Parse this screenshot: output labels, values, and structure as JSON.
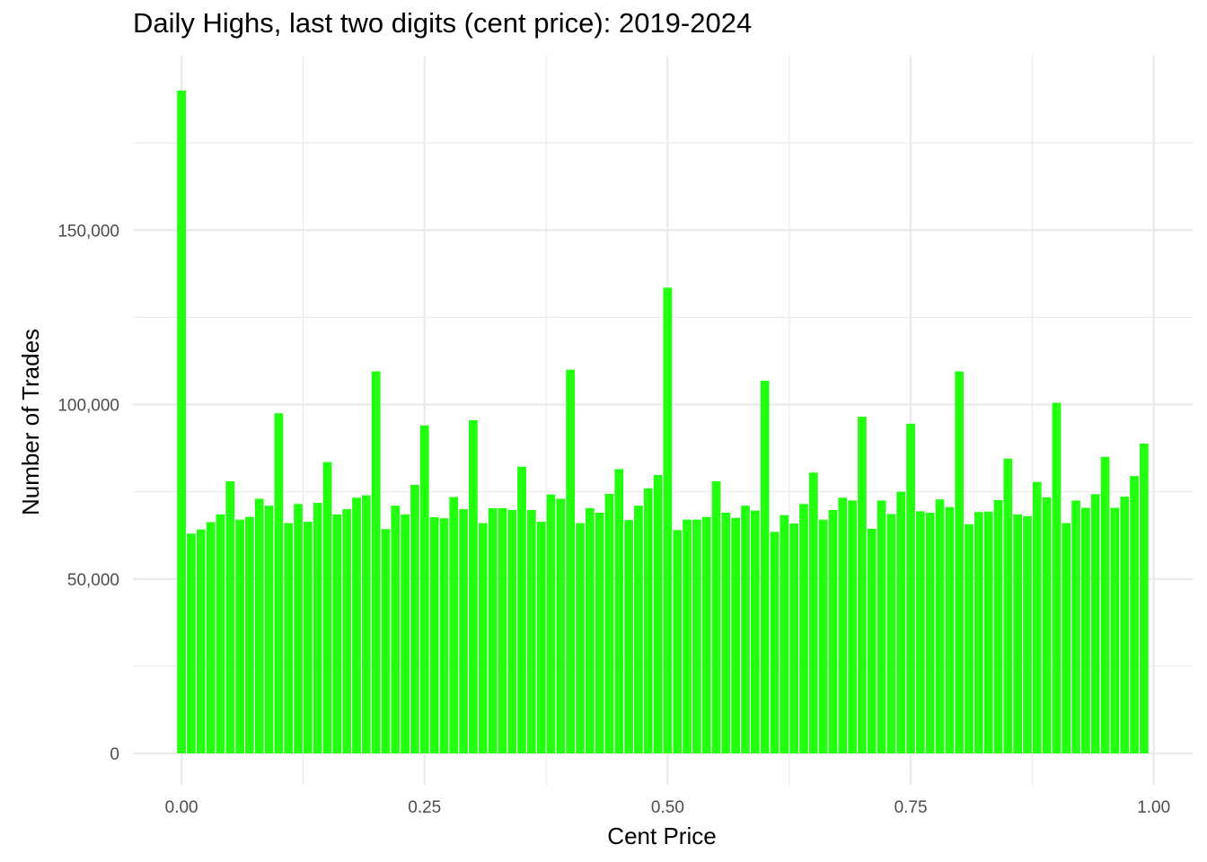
{
  "chart_data": {
    "type": "bar",
    "title": "Daily Highs, last two digits (cent price): 2019-2024",
    "xlabel": "Cent Price",
    "ylabel": "Number of Trades",
    "xlim": [
      -0.05,
      1.04
    ],
    "ylim": [
      -9000,
      200000
    ],
    "x_ticks": [
      {
        "value": 0.0,
        "label": "0.00"
      },
      {
        "value": 0.25,
        "label": "0.25"
      },
      {
        "value": 0.5,
        "label": "0.50"
      },
      {
        "value": 0.75,
        "label": "0.75"
      },
      {
        "value": 1.0,
        "label": "1.00"
      }
    ],
    "y_ticks": [
      {
        "value": 0,
        "label": "0"
      },
      {
        "value": 50000,
        "label": "50,000"
      },
      {
        "value": 100000,
        "label": "100,000"
      },
      {
        "value": 150000,
        "label": "150,000"
      }
    ],
    "grid": true,
    "bar_color": "#22ff0f",
    "x": [
      0.0,
      0.01,
      0.02,
      0.03,
      0.04,
      0.05,
      0.06,
      0.07,
      0.08,
      0.09,
      0.1,
      0.11,
      0.12,
      0.13,
      0.14,
      0.15,
      0.16,
      0.17,
      0.18,
      0.19,
      0.2,
      0.21,
      0.22,
      0.23,
      0.24,
      0.25,
      0.26,
      0.27,
      0.28,
      0.29,
      0.3,
      0.31,
      0.32,
      0.33,
      0.34,
      0.35,
      0.36,
      0.37,
      0.38,
      0.39,
      0.4,
      0.41,
      0.42,
      0.43,
      0.44,
      0.45,
      0.46,
      0.47,
      0.48,
      0.49,
      0.5,
      0.51,
      0.52,
      0.53,
      0.54,
      0.55,
      0.56,
      0.57,
      0.58,
      0.59,
      0.6,
      0.61,
      0.62,
      0.63,
      0.64,
      0.65,
      0.66,
      0.67,
      0.68,
      0.69,
      0.7,
      0.71,
      0.72,
      0.73,
      0.74,
      0.75,
      0.76,
      0.77,
      0.78,
      0.79,
      0.8,
      0.81,
      0.82,
      0.83,
      0.84,
      0.85,
      0.86,
      0.87,
      0.88,
      0.89,
      0.9,
      0.91,
      0.92,
      0.93,
      0.94,
      0.95,
      0.96,
      0.97,
      0.98,
      0.99
    ],
    "values": [
      190000,
      63000,
      64200,
      66300,
      68500,
      78000,
      67000,
      67800,
      73000,
      71000,
      97500,
      66000,
      71500,
      66400,
      71800,
      83500,
      68500,
      70000,
      73300,
      74000,
      109500,
      64300,
      71000,
      68500,
      77000,
      94000,
      67700,
      67400,
      73500,
      70000,
      95500,
      66000,
      70300,
      70300,
      69800,
      82200,
      69800,
      66400,
      74200,
      73000,
      110000,
      66000,
      70300,
      69000,
      74400,
      81500,
      66900,
      71000,
      76000,
      79800,
      133500,
      64000,
      67000,
      67000,
      67800,
      78000,
      69000,
      67500,
      71000,
      69600,
      106800,
      63500,
      68300,
      65900,
      71500,
      80500,
      67000,
      69800,
      73300,
      72500,
      96500,
      64400,
      72500,
      68600,
      75000,
      94500,
      69400,
      69000,
      72800,
      70600,
      109500,
      65700,
      69200,
      69300,
      72600,
      84500,
      68500,
      68000,
      77800,
      73400,
      100500,
      66000,
      72500,
      70400,
      74300,
      85000,
      70400,
      73600,
      79500,
      88800
    ]
  }
}
